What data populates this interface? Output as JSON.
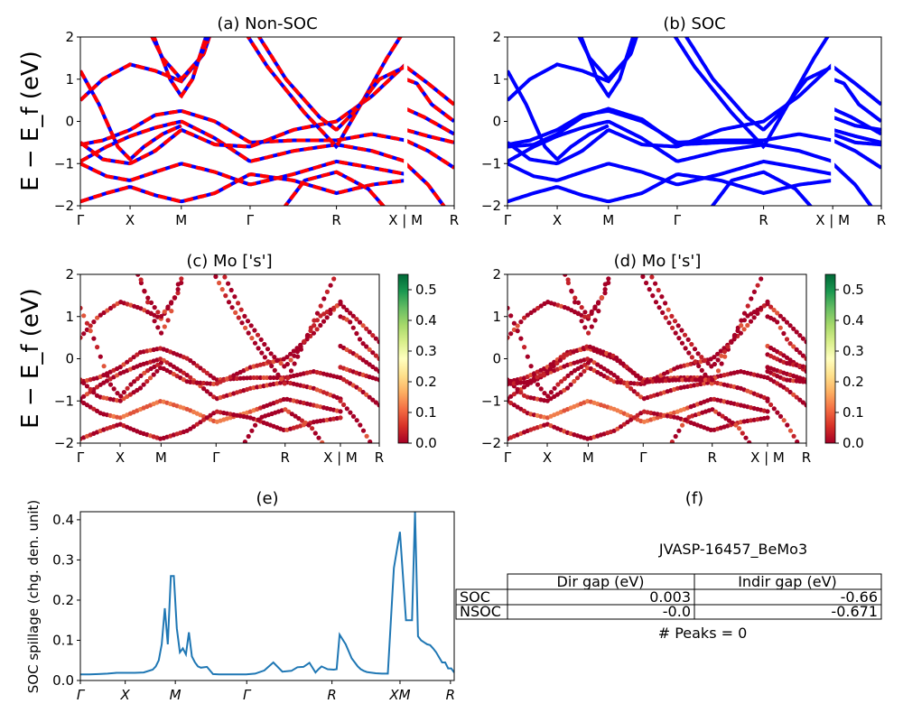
{
  "chart_data": [
    {
      "type": "line",
      "title": "(a) Non-SOC",
      "ylabel": "E − E_f (eV)",
      "ylim": [
        -2,
        2
      ],
      "yticks": [
        "−2",
        "−1",
        "0",
        "1",
        "2"
      ],
      "xticks": [
        "Γ",
        "X",
        "M",
        "Γ",
        "R",
        "X | M",
        "R"
      ],
      "series_colors": [
        "#0000ff",
        "#ff0000"
      ],
      "series_style": "blue solid with red dashed overlay"
    },
    {
      "type": "line",
      "title": "(b) SOC",
      "ylim": [
        -2,
        2
      ],
      "yticks": [
        "−2",
        "−1",
        "0",
        "1",
        "2"
      ],
      "xticks": [
        "Γ",
        "X",
        "M",
        "Γ",
        "R",
        "X | M",
        "R"
      ],
      "series_colors": [
        "#0000ff"
      ]
    },
    {
      "type": "scatter",
      "title": "(c)  Mo ['s']",
      "ylabel": "E − E_f (eV)",
      "ylim": [
        -2,
        2
      ],
      "yticks": [
        "−2",
        "−1",
        "0",
        "1",
        "2"
      ],
      "xticks": [
        "Γ",
        "X",
        "M",
        "Γ",
        "R",
        "X | M",
        "R"
      ],
      "colorbar": {
        "ticks": [
          "0.0",
          "0.1",
          "0.2",
          "0.3",
          "0.4",
          "0.5"
        ],
        "range": [
          0,
          0.55
        ],
        "colormap": "RdYlGn"
      }
    },
    {
      "type": "scatter",
      "title": "(d) Mo ['s']",
      "ylim": [
        -2,
        2
      ],
      "yticks": [
        "−2",
        "−1",
        "0",
        "1",
        "2"
      ],
      "xticks": [
        "Γ",
        "X",
        "M",
        "Γ",
        "R",
        "X | M",
        "R"
      ],
      "colorbar": {
        "ticks": [
          "0.0",
          "0.1",
          "0.2",
          "0.3",
          "0.4",
          "0.5"
        ],
        "range": [
          0,
          0.55
        ],
        "colormap": "RdYlGn"
      }
    },
    {
      "type": "line",
      "title": "(e)",
      "ylabel": "SOC spillage (chg. den. unit)",
      "ylim": [
        0,
        0.42
      ],
      "yticks": [
        "0.0",
        "0.1",
        "0.2",
        "0.3",
        "0.4"
      ],
      "xticks": [
        "Γ",
        "X",
        "M",
        "Γ",
        "R",
        "XM",
        "R"
      ],
      "x": [
        0,
        3,
        6,
        9,
        12,
        15,
        18,
        21,
        24,
        25,
        26,
        27,
        28,
        29,
        30,
        31,
        32,
        33,
        34,
        35,
        36,
        37,
        38,
        39,
        40,
        42,
        44,
        46,
        48,
        50,
        52,
        55,
        58,
        61,
        64,
        67,
        70,
        72,
        74,
        76,
        78,
        79,
        80,
        82,
        84,
        85,
        86,
        88,
        90,
        92,
        93,
        94,
        95,
        96,
        98,
        100,
        102,
        104,
        106,
        108,
        109,
        110,
        111,
        112,
        113,
        114,
        115,
        116,
        117,
        118,
        120,
        121,
        122,
        123,
        124
      ],
      "values": [
        0.015,
        0.015,
        0.016,
        0.017,
        0.019,
        0.019,
        0.019,
        0.02,
        0.027,
        0.035,
        0.05,
        0.09,
        0.18,
        0.09,
        0.26,
        0.26,
        0.13,
        0.07,
        0.08,
        0.065,
        0.12,
        0.06,
        0.045,
        0.035,
        0.032,
        0.034,
        0.016,
        0.015,
        0.015,
        0.015,
        0.015,
        0.015,
        0.017,
        0.025,
        0.045,
        0.022,
        0.024,
        0.033,
        0.034,
        0.044,
        0.02,
        0.028,
        0.035,
        0.028,
        0.027,
        0.028,
        0.114,
        0.09,
        0.055,
        0.035,
        0.028,
        0.024,
        0.021,
        0.02,
        0.018,
        0.017,
        0.017,
        0.28,
        0.37,
        0.15,
        0.15,
        0.15,
        0.42,
        0.11,
        0.1,
        0.095,
        0.09,
        0.088,
        0.08,
        0.07,
        0.045,
        0.045,
        0.03,
        0.03,
        0.02
      ],
      "color": "#1f77b4"
    }
  ],
  "info": {
    "title": "(f)",
    "material": "JVASP-16457_BeMo3",
    "table": {
      "headers": [
        "Dir gap (eV)",
        "Indir gap (eV)"
      ],
      "rows": [
        {
          "label": "SOC",
          "dir": "0.003",
          "indir": "-0.66"
        },
        {
          "label": "NSOC",
          "dir": "-0.0",
          "indir": "-0.671"
        }
      ]
    },
    "peaks": "# Peaks = 0"
  }
}
